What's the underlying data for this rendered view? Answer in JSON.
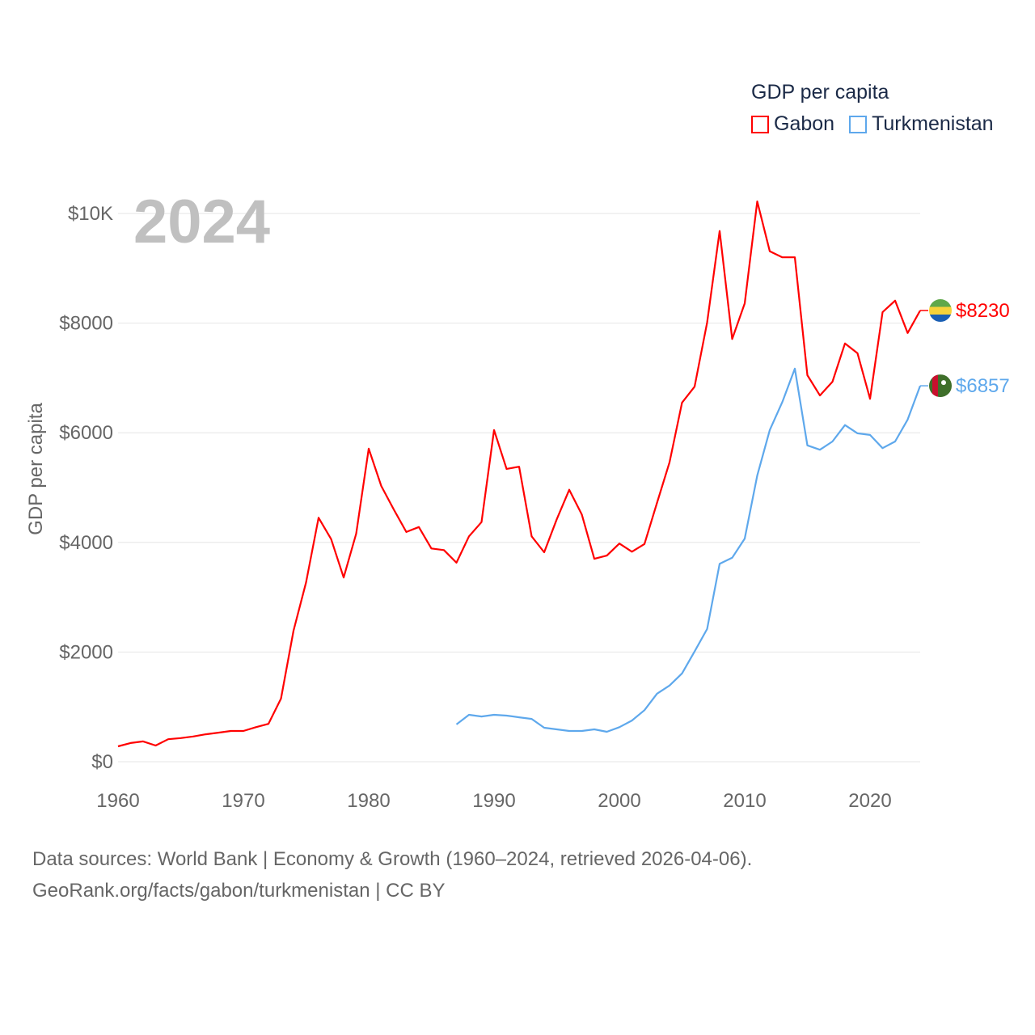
{
  "chart_data": {
    "type": "line",
    "title": "GDP per capita",
    "year_label": "2024",
    "xlabel": "",
    "ylabel": "GDP per capita",
    "xlim": [
      1960,
      2024
    ],
    "ylim": [
      0,
      10000
    ],
    "x_ticks": [
      1960,
      1970,
      1980,
      1990,
      2000,
      2010,
      2020
    ],
    "x_tick_labels": [
      "1960",
      "1970",
      "1980",
      "1990",
      "2000",
      "2010",
      "2020"
    ],
    "y_ticks": [
      0,
      2000,
      4000,
      6000,
      8000,
      10000
    ],
    "y_tick_labels": [
      "$0",
      "$2000",
      "$4000",
      "$6000",
      "$8000",
      "$10K"
    ],
    "grid": true,
    "legend_position": "top-right",
    "series": [
      {
        "name": "Gabon",
        "color": "#ff0000",
        "end_label": "$8230",
        "flag": "gabon-flag",
        "start_year": 1960,
        "values": [
          280,
          340,
          370,
          295,
          410,
          430,
          460,
          500,
          530,
          560,
          560,
          630,
          690,
          1150,
          2390,
          3270,
          4450,
          4060,
          3360,
          4160,
          5710,
          5030,
          4600,
          4190,
          4280,
          3890,
          3860,
          3630,
          4110,
          4370,
          6050,
          5340,
          5380,
          4110,
          3820,
          4420,
          4960,
          4510,
          3700,
          3760,
          3980,
          3830,
          3970,
          4720,
          5460,
          6550,
          6840,
          8010,
          9680,
          7710,
          8360,
          10220,
          9310,
          9200,
          9200,
          7050,
          6680,
          6930,
          7630,
          7450,
          6620,
          8200,
          8410,
          7820,
          8230
        ]
      },
      {
        "name": "Turkmenistan",
        "color": "#5ea8ec",
        "end_label": "$6857",
        "flag": "turkmenistan-flag",
        "start_year": 1987,
        "values": [
          680,
          855,
          825,
          855,
          840,
          810,
          780,
          620,
          590,
          560,
          560,
          590,
          545,
          630,
          750,
          940,
          1240,
          1390,
          1610,
          2010,
          2420,
          3610,
          3720,
          4070,
          5220,
          6050,
          6560,
          7170,
          5770,
          5690,
          5840,
          6140,
          5990,
          5960,
          5720,
          5840,
          6240,
          6857
        ]
      }
    ]
  },
  "footer": {
    "line1": "Data sources: World Bank | Economy & Growth (1960–2024, retrieved 2026-04-06).",
    "line2": "GeoRank.org/facts/gabon/turkmenistan | CC BY"
  }
}
